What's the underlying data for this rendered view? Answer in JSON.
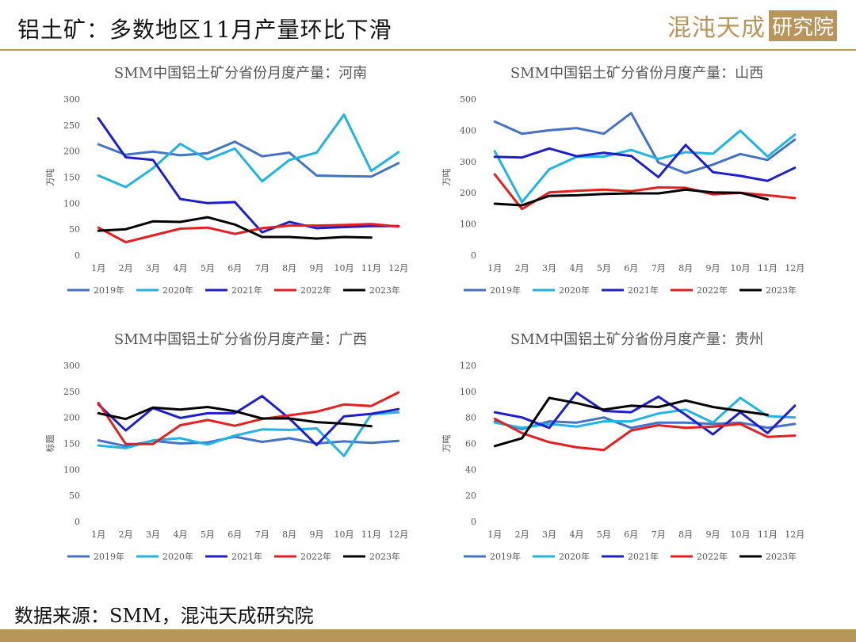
{
  "header": {
    "title": "铝土矿：多数地区11月产量环比下滑",
    "logo_text": "混沌天成",
    "logo_boxed": "研究院"
  },
  "footer": {
    "source": "数据来源：SMM，混沌天成研究院"
  },
  "colors": {
    "2019年": "#4472c4",
    "2020年": "#21b4e3",
    "2021年": "#1f1fc9",
    "2022年": "#e31f1f",
    "2023年": "#000000"
  },
  "chart_data": [
    {
      "type": "line",
      "title": "SMM中国铝土矿分省份月度产量：河南",
      "ylabel": "万吨",
      "ylim": [
        0,
        300
      ],
      "yticks": [
        0,
        50,
        100,
        150,
        200,
        250,
        300
      ],
      "categories": [
        "1月",
        "2月",
        "3月",
        "4月",
        "5月",
        "6月",
        "7月",
        "8月",
        "9月",
        "10月",
        "11月",
        "12月"
      ],
      "legend": "bottom",
      "series": [
        {
          "name": "2019年",
          "values": [
            213,
            193,
            199,
            192,
            196,
            218,
            190,
            197,
            153,
            152,
            151,
            177
          ]
        },
        {
          "name": "2020年",
          "values": [
            153,
            131,
            167,
            214,
            184,
            205,
            142,
            183,
            197,
            270,
            162,
            198
          ]
        },
        {
          "name": "2021年",
          "values": [
            263,
            188,
            183,
            108,
            100,
            102,
            44,
            64,
            52,
            54,
            56,
            56
          ]
        },
        {
          "name": "2022年",
          "values": [
            53,
            25,
            38,
            51,
            53,
            41,
            52,
            57,
            57,
            58,
            60,
            55
          ]
        },
        {
          "name": "2023年",
          "values": [
            47,
            50,
            65,
            64,
            73,
            59,
            35,
            35,
            32,
            35,
            34,
            null
          ]
        }
      ]
    },
    {
      "type": "line",
      "title": "SMM中国铝土矿分省份月度产量：山西",
      "ylabel": "万吨",
      "ylim": [
        0,
        500
      ],
      "yticks": [
        0,
        100,
        200,
        300,
        400,
        500
      ],
      "categories": [
        "1月",
        "2月",
        "3月",
        "4月",
        "5月",
        "6月",
        "7月",
        "8月",
        "9月",
        "10月",
        "11月",
        "12月"
      ],
      "legend": "bottom",
      "series": [
        {
          "name": "2019年",
          "values": [
            428,
            389,
            400,
            407,
            389,
            455,
            297,
            263,
            290,
            324,
            305,
            370
          ]
        },
        {
          "name": "2020年",
          "values": [
            333,
            170,
            275,
            315,
            316,
            337,
            308,
            330,
            325,
            399,
            316,
            386
          ]
        },
        {
          "name": "2021年",
          "values": [
            315,
            313,
            342,
            317,
            328,
            318,
            250,
            353,
            266,
            254,
            238,
            280
          ]
        },
        {
          "name": "2022年",
          "values": [
            259,
            148,
            201,
            206,
            210,
            205,
            217,
            216,
            195,
            200,
            192,
            183
          ]
        },
        {
          "name": "2023年",
          "values": [
            165,
            160,
            190,
            192,
            196,
            198,
            198,
            210,
            201,
            200,
            179,
            null
          ]
        }
      ]
    },
    {
      "type": "line",
      "title": "SMM中国铝土矿分省份月度产量：广西",
      "ylabel": "标题",
      "ylim": [
        0,
        300
      ],
      "yticks": [
        0,
        50,
        100,
        150,
        200,
        250,
        300
      ],
      "categories": [
        "1月",
        "2月",
        "3月",
        "4月",
        "5月",
        "6月",
        "7月",
        "8月",
        "9月",
        "10月",
        "11月",
        "12月"
      ],
      "legend": "bottom",
      "series": [
        {
          "name": "2019年",
          "values": [
            156,
            145,
            155,
            150,
            152,
            163,
            153,
            160,
            150,
            154,
            151,
            155
          ]
        },
        {
          "name": "2020年",
          "values": [
            146,
            141,
            156,
            160,
            148,
            165,
            177,
            176,
            179,
            126,
            206,
            210
          ]
        },
        {
          "name": "2021年",
          "values": [
            225,
            175,
            218,
            199,
            208,
            208,
            241,
            198,
            147,
            202,
            207,
            216
          ]
        },
        {
          "name": "2022年",
          "values": [
            228,
            149,
            149,
            185,
            195,
            184,
            197,
            204,
            211,
            225,
            222,
            248
          ]
        },
        {
          "name": "2023年",
          "values": [
            208,
            197,
            219,
            215,
            220,
            212,
            198,
            198,
            191,
            188,
            183,
            null
          ]
        }
      ]
    },
    {
      "type": "line",
      "title": "SMM中国铝土矿分省份月度产量：贵州",
      "ylabel": "万吨",
      "ylim": [
        0,
        120
      ],
      "yticks": [
        0,
        20,
        40,
        60,
        80,
        100,
        120
      ],
      "categories": [
        "1月",
        "2月",
        "3月",
        "4月",
        "5月",
        "6月",
        "7月",
        "8月",
        "9月",
        "10月",
        "11月",
        "12月"
      ],
      "legend": "bottom",
      "series": [
        {
          "name": "2019年",
          "values": [
            77,
            71,
            77,
            76,
            80,
            72,
            76,
            76,
            75,
            76,
            72,
            75
          ]
        },
        {
          "name": "2020年",
          "values": [
            76,
            72,
            75,
            73,
            77,
            77,
            83,
            86,
            76,
            95,
            81,
            80
          ]
        },
        {
          "name": "2021年",
          "values": [
            84,
            80,
            72,
            99,
            85,
            84,
            96,
            82,
            67,
            84,
            68,
            89
          ]
        },
        {
          "name": "2022年",
          "values": [
            79,
            68,
            61,
            57,
            55,
            70,
            74,
            72,
            73,
            75,
            65,
            66
          ]
        },
        {
          "name": "2023年",
          "values": [
            58,
            64,
            95,
            91,
            86,
            89,
            88,
            93,
            88,
            85,
            82,
            null
          ]
        }
      ]
    }
  ]
}
